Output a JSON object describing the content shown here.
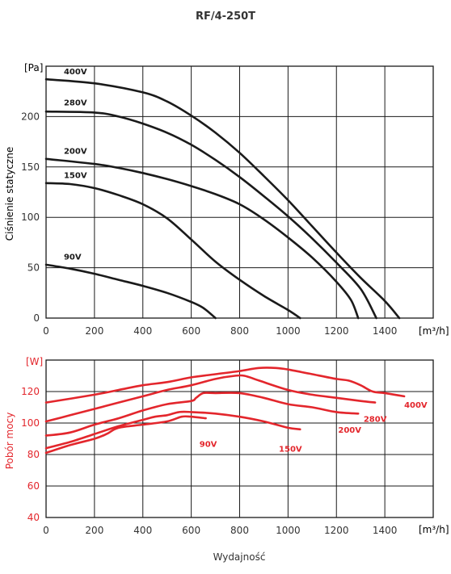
{
  "title": "RF/4-250T",
  "xlabel": "Wydajność",
  "colors": {
    "pressure": "#1a1a1a",
    "power": "#e3262c",
    "grid": "#1a1a1a",
    "text": "#333333"
  },
  "chart_data": [
    {
      "type": "line",
      "ylabel": "Ciśnienie statyczne",
      "y_unit": "[Pa]",
      "x_unit": "[m³/h]",
      "xlim": [
        0,
        1600
      ],
      "ylim": [
        0,
        250
      ],
      "x_ticks": [
        "0",
        "200",
        "400",
        "600",
        "800",
        "1000",
        "1200",
        "1400"
      ],
      "y_ticks": [
        "0",
        "50",
        "100",
        "150",
        "200"
      ],
      "grid": true,
      "series": [
        {
          "name": "400V",
          "label_at": [
            40,
            242
          ],
          "points": [
            [
              0,
              237
            ],
            [
              200,
              233
            ],
            [
              400,
              224
            ],
            [
              500,
              215
            ],
            [
              600,
              201
            ],
            [
              700,
              184
            ],
            [
              800,
              164
            ],
            [
              900,
              141
            ],
            [
              1000,
              117
            ],
            [
              1100,
              91
            ],
            [
              1200,
              65
            ],
            [
              1300,
              40
            ],
            [
              1400,
              17
            ],
            [
              1460,
              0
            ]
          ]
        },
        {
          "name": "280V",
          "label_at": [
            40,
            211
          ],
          "points": [
            [
              0,
              205
            ],
            [
              200,
              204
            ],
            [
              300,
              200
            ],
            [
              400,
              193
            ],
            [
              500,
              184
            ],
            [
              600,
              172
            ],
            [
              700,
              157
            ],
            [
              800,
              140
            ],
            [
              900,
              121
            ],
            [
              1000,
              101
            ],
            [
              1100,
              79
            ],
            [
              1200,
              55
            ],
            [
              1300,
              29
            ],
            [
              1365,
              0
            ]
          ]
        },
        {
          "name": "200V",
          "label_at": [
            40,
            163
          ],
          "points": [
            [
              0,
              158
            ],
            [
              200,
              153
            ],
            [
              300,
              149
            ],
            [
              400,
              144
            ],
            [
              500,
              138
            ],
            [
              600,
              131
            ],
            [
              700,
              123
            ],
            [
              800,
              113
            ],
            [
              900,
              98
            ],
            [
              1000,
              80
            ],
            [
              1100,
              60
            ],
            [
              1200,
              36
            ],
            [
              1260,
              18
            ],
            [
              1290,
              0
            ]
          ]
        },
        {
          "name": "150V",
          "label_at": [
            40,
            139
          ],
          "points": [
            [
              0,
              134
            ],
            [
              100,
              133
            ],
            [
              200,
              129
            ],
            [
              300,
              122
            ],
            [
              400,
              113
            ],
            [
              500,
              99
            ],
            [
              600,
              78
            ],
            [
              700,
              56
            ],
            [
              800,
              38
            ],
            [
              900,
              22
            ],
            [
              1000,
              8
            ],
            [
              1050,
              0
            ]
          ]
        },
        {
          "name": "90V",
          "label_at": [
            40,
            58
          ],
          "points": [
            [
              0,
              53
            ],
            [
              100,
              49
            ],
            [
              200,
              44
            ],
            [
              300,
              38
            ],
            [
              400,
              32
            ],
            [
              500,
              25
            ],
            [
              600,
              16
            ],
            [
              650,
              10
            ],
            [
              700,
              0
            ]
          ]
        }
      ]
    },
    {
      "type": "line",
      "ylabel": "Pobór mocy",
      "y_unit": "[W]",
      "x_unit": "[m³/h]",
      "xlim": [
        0,
        1600
      ],
      "ylim": [
        40,
        140
      ],
      "x_ticks": [
        "0",
        "200",
        "400",
        "600",
        "800",
        "1000",
        "1200",
        "1400"
      ],
      "y_ticks": [
        "40",
        "60",
        "80",
        "100",
        "120"
      ],
      "grid": true,
      "series": [
        {
          "name": "400V",
          "label_at": [
            1480,
            117
          ],
          "points": [
            [
              0,
              113
            ],
            [
              200,
              118
            ],
            [
              300,
              121
            ],
            [
              400,
              124
            ],
            [
              500,
              126
            ],
            [
              600,
              129
            ],
            [
              700,
              131
            ],
            [
              800,
              133
            ],
            [
              880,
              135
            ],
            [
              950,
              135
            ],
            [
              1000,
              134
            ],
            [
              1100,
              131
            ],
            [
              1200,
              128
            ],
            [
              1250,
              127
            ],
            [
              1300,
              124
            ],
            [
              1350,
              120
            ],
            [
              1400,
              119
            ],
            [
              1480,
              117
            ]
          ]
        },
        {
          "name": "280V",
          "label_at": [
            1360,
            108
          ],
          "points": [
            [
              0,
              101
            ],
            [
              100,
              105
            ],
            [
              200,
              109
            ],
            [
              300,
              113
            ],
            [
              400,
              117
            ],
            [
              500,
              121
            ],
            [
              600,
              124
            ],
            [
              700,
              128
            ],
            [
              780,
              130
            ],
            [
              820,
              130
            ],
            [
              880,
              127
            ],
            [
              1000,
              121
            ],
            [
              1100,
              118
            ],
            [
              1200,
              116
            ],
            [
              1300,
              114
            ],
            [
              1360,
              113
            ]
          ]
        },
        {
          "name": "200V",
          "label_at": [
            1255,
            101
          ],
          "points": [
            [
              0,
              92
            ],
            [
              100,
              94
            ],
            [
              200,
              99
            ],
            [
              300,
              103
            ],
            [
              400,
              108
            ],
            [
              500,
              112
            ],
            [
              600,
              114
            ],
            [
              620,
              116
            ],
            [
              650,
              119
            ],
            [
              700,
              119
            ],
            [
              800,
              119
            ],
            [
              900,
              116
            ],
            [
              1000,
              112
            ],
            [
              1100,
              110
            ],
            [
              1200,
              107
            ],
            [
              1290,
              106
            ]
          ]
        },
        {
          "name": "150V",
          "label_at": [
            1010,
            89
          ],
          "points": [
            [
              0,
              84
            ],
            [
              100,
              88
            ],
            [
              200,
              93
            ],
            [
              300,
              98
            ],
            [
              400,
              102
            ],
            [
              450,
              104
            ],
            [
              500,
              105
            ],
            [
              550,
              107
            ],
            [
              600,
              107
            ],
            [
              700,
              106
            ],
            [
              800,
              104
            ],
            [
              900,
              101
            ],
            [
              1000,
              97
            ],
            [
              1050,
              96
            ]
          ]
        },
        {
          "name": "90V",
          "label_at": [
            670,
            92
          ],
          "points": [
            [
              0,
              81
            ],
            [
              100,
              86
            ],
            [
              200,
              90
            ],
            [
              250,
              93
            ],
            [
              300,
              97
            ],
            [
              400,
              99
            ],
            [
              500,
              101
            ],
            [
              560,
              104
            ],
            [
              600,
              104
            ],
            [
              660,
              103
            ]
          ]
        }
      ]
    }
  ]
}
